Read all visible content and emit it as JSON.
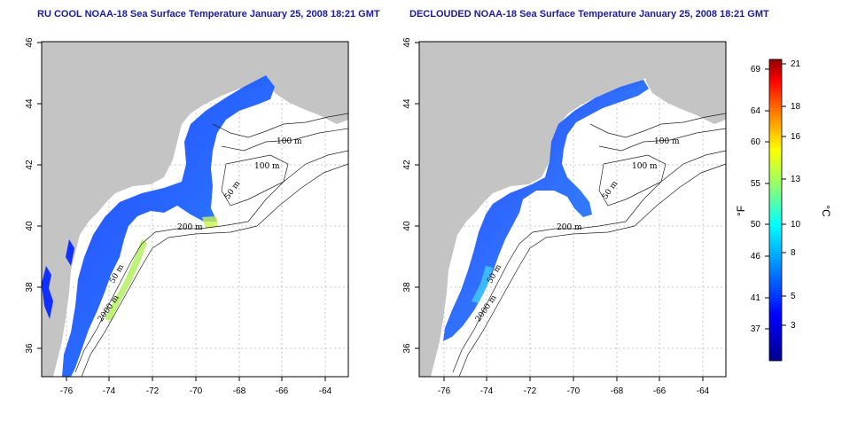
{
  "panels": [
    {
      "title": "RU COOL NOAA-18 Sea Surface Temperature January 25, 2008 18:21 GMT",
      "x_ticks": [
        "-76",
        "-74",
        "-72",
        "-70",
        "-68",
        "-66",
        "-64"
      ],
      "y_ticks": [
        "36",
        "38",
        "40",
        "42",
        "44",
        "46"
      ],
      "contour_labels": [
        "100 m",
        "100 m",
        "50 m",
        "200 m",
        "50 m",
        "2000 m"
      ]
    },
    {
      "title": "DECLOUDED NOAA-18 Sea Surface Temperature January 25, 2008 18:21 GMT",
      "x_ticks": [
        "-76",
        "-74",
        "-72",
        "-70",
        "-68",
        "-66",
        "-64"
      ],
      "y_ticks": [
        "36",
        "38",
        "40",
        "42",
        "44",
        "46"
      ],
      "contour_labels": [
        "100 m",
        "100 m",
        "50 m",
        "200 m",
        "50 m",
        "2000 m"
      ]
    }
  ],
  "colorbar": {
    "fahrenheit_ticks": [
      "69",
      "64",
      "60",
      "55",
      "50",
      "46",
      "41",
      "37"
    ],
    "celsius_ticks": [
      "21",
      "18",
      "16",
      "13",
      "10",
      "8",
      "5",
      "3"
    ],
    "unit_f": "°F",
    "unit_c": "°C",
    "colors": [
      "#00008f",
      "#0000ff",
      "#0080ff",
      "#00ffff",
      "#80ff80",
      "#ffff00",
      "#ff8000",
      "#ff0000",
      "#800000"
    ]
  }
}
